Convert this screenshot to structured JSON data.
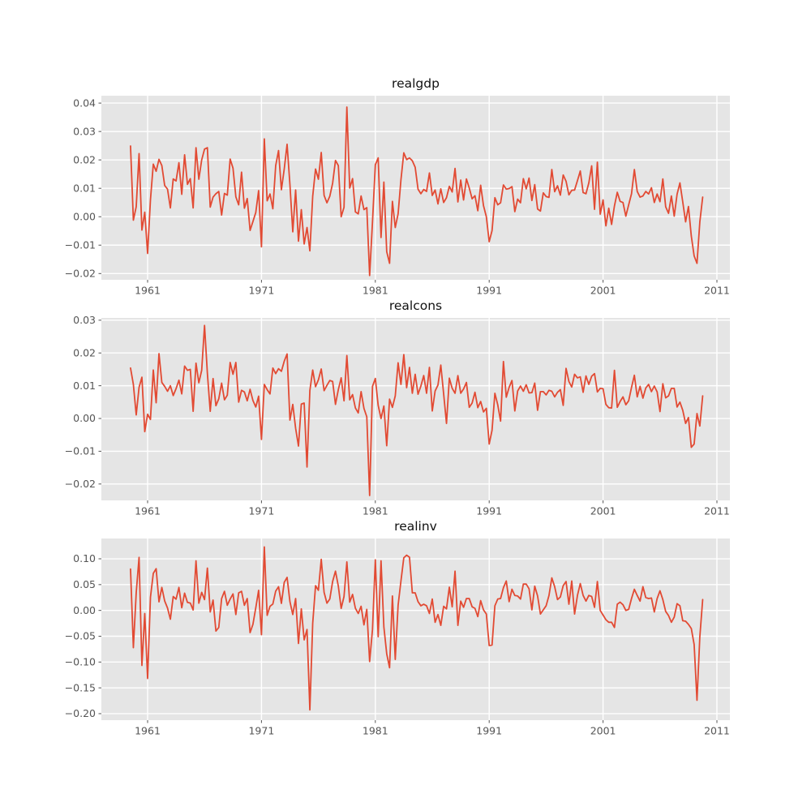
{
  "figure": {
    "background": "#ffffff",
    "plot_background": "#e5e5e5",
    "grid_color": "#ffffff",
    "line_color": "#e24a33",
    "tick_color": "#555555",
    "title_color": "#111111"
  },
  "chart_data": [
    {
      "type": "line",
      "title": "realgdp",
      "xlabel": "",
      "ylabel": "",
      "grid": true,
      "legend": "none",
      "x_start": 1959.5,
      "x_step": 0.25,
      "xlim": [
        1956.94,
        2012.14
      ],
      "ylim": [
        -0.0222,
        0.0426
      ],
      "xticks": [
        1961,
        1971,
        1981,
        1991,
        2001,
        2011
      ],
      "yticks": [
        0.04,
        0.03,
        0.02,
        0.01,
        0.0,
        -0.01,
        -0.02
      ],
      "values": [
        0.0249,
        -0.0012,
        0.0035,
        0.0222,
        -0.0047,
        0.0016,
        -0.0129,
        0.0059,
        0.0185,
        0.016,
        0.0202,
        0.018,
        0.011,
        0.0097,
        0.0031,
        0.0133,
        0.0126,
        0.019,
        0.0079,
        0.0218,
        0.0114,
        0.0134,
        0.0031,
        0.0243,
        0.0132,
        0.02,
        0.0238,
        0.0243,
        0.0034,
        0.0069,
        0.0081,
        0.0089,
        0.0006,
        0.0082,
        0.0076,
        0.0203,
        0.0171,
        0.007,
        0.0042,
        0.0157,
        0.003,
        0.0064,
        -0.0048,
        -0.0017,
        0.0015,
        0.0092,
        -0.0106,
        0.0274,
        0.0056,
        0.008,
        0.0028,
        0.018,
        0.0233,
        0.0095,
        0.0168,
        0.0255,
        0.0113,
        -0.0053,
        0.0094,
        -0.0086,
        0.0025,
        -0.0096,
        -0.0038,
        -0.012,
        0.0072,
        0.0168,
        0.0132,
        0.0226,
        0.0075,
        0.0049,
        0.0072,
        0.0118,
        0.0198,
        0.018,
        0.0,
        0.0033,
        0.0386,
        0.0101,
        0.0134,
        0.0017,
        0.001,
        0.0073,
        0.0025,
        0.0032,
        -0.0207,
        -0.0018,
        0.0183,
        0.0207,
        -0.0073,
        0.0122,
        -0.0123,
        -0.0164,
        0.0054,
        -0.0038,
        0.001,
        0.013,
        0.0225,
        0.0201,
        0.0207,
        0.0197,
        0.0174,
        0.0097,
        0.0081,
        0.0096,
        0.0089,
        0.0154,
        0.0075,
        0.0094,
        0.0045,
        0.0098,
        0.005,
        0.0067,
        0.0107,
        0.0087,
        0.017,
        0.0052,
        0.0129,
        0.0059,
        0.0133,
        0.0101,
        0.0063,
        0.0074,
        0.0021,
        0.0111,
        0.0039,
        0.0,
        -0.0088,
        -0.0049,
        0.0067,
        0.0042,
        0.0049,
        0.0112,
        0.0097,
        0.0099,
        0.0106,
        0.0018,
        0.0062,
        0.0049,
        0.0134,
        0.0098,
        0.0136,
        0.0057,
        0.0113,
        0.0027,
        0.002,
        0.0084,
        0.0071,
        0.0068,
        0.0166,
        0.0088,
        0.0109,
        0.0076,
        0.0147,
        0.0125,
        0.0077,
        0.0093,
        0.0094,
        0.0127,
        0.0161,
        0.0085,
        0.0081,
        0.0119,
        0.0179,
        0.0026,
        0.0192,
        0.0009,
        0.0059,
        -0.0032,
        0.003,
        -0.0027,
        0.0038,
        0.0086,
        0.0054,
        0.005,
        0.0002,
        0.0042,
        0.0081,
        0.0166,
        0.0089,
        0.0069,
        0.0073,
        0.0089,
        0.008,
        0.0102,
        0.005,
        0.008,
        0.0053,
        0.0133,
        0.0035,
        0.0012,
        0.0073,
        0.0002,
        0.0079,
        0.0119,
        0.0052,
        -0.0018,
        0.0036,
        -0.0068,
        -0.0138,
        -0.0164,
        -0.0018,
        0.0069
      ]
    },
    {
      "type": "line",
      "title": "realcons",
      "xlabel": "",
      "ylabel": "",
      "grid": true,
      "legend": "none",
      "x_start": 1959.5,
      "x_step": 0.25,
      "xlim": [
        1956.94,
        2012.14
      ],
      "ylim": [
        -0.025,
        0.0307
      ],
      "xticks": [
        1961,
        1971,
        1981,
        1991,
        2001,
        2011
      ],
      "yticks": [
        0.03,
        0.02,
        0.01,
        0.0,
        -0.01,
        -0.02
      ],
      "values": [
        0.0154,
        0.0104,
        0.0011,
        0.0095,
        0.0126,
        -0.004,
        0.0013,
        -0.0003,
        0.0148,
        0.0048,
        0.0198,
        0.011,
        0.0098,
        0.0083,
        0.01,
        0.007,
        0.0091,
        0.0117,
        0.0075,
        0.016,
        0.0147,
        0.015,
        0.0022,
        0.0169,
        0.0109,
        0.0147,
        0.0284,
        0.0138,
        0.0022,
        0.0122,
        0.0039,
        0.006,
        0.0108,
        0.0057,
        0.0071,
        0.0171,
        0.0135,
        0.0171,
        0.005,
        0.0086,
        0.0081,
        0.0054,
        0.0089,
        0.0055,
        0.0035,
        0.0068,
        -0.0064,
        0.0104,
        0.0088,
        0.0075,
        0.0154,
        0.0137,
        0.0152,
        0.0144,
        0.0175,
        0.0197,
        -0.0005,
        0.0043,
        -0.003,
        -0.0084,
        0.0044,
        0.0047,
        -0.0148,
        0.0085,
        0.0148,
        0.0097,
        0.0118,
        0.0151,
        0.0085,
        0.0101,
        0.0116,
        0.0113,
        0.0043,
        0.0088,
        0.0124,
        0.0054,
        0.0192,
        0.0057,
        0.0073,
        0.0032,
        0.0017,
        0.0082,
        0.0031,
        0.0005,
        -0.0235,
        0.0098,
        0.0122,
        0.004,
        0.0,
        0.0038,
        -0.0083,
        0.0059,
        0.0034,
        0.0069,
        0.017,
        0.0104,
        0.0195,
        0.0094,
        0.0156,
        0.0077,
        0.0135,
        0.0074,
        0.0099,
        0.0131,
        0.0077,
        0.0156,
        0.0023,
        0.0084,
        0.0102,
        0.0163,
        0.0075,
        -0.0015,
        0.0123,
        0.0092,
        0.0077,
        0.0131,
        0.0077,
        0.009,
        0.011,
        0.0034,
        0.0047,
        0.008,
        0.0033,
        0.0052,
        0.002,
        0.0031,
        -0.0078,
        -0.0036,
        0.0077,
        0.0042,
        -0.0008,
        0.0174,
        0.0065,
        0.0095,
        0.0116,
        0.0023,
        0.0084,
        0.0099,
        0.0083,
        0.0103,
        0.0078,
        0.0079,
        0.0108,
        0.0025,
        0.0082,
        0.0082,
        0.0072,
        0.0086,
        0.0083,
        0.0066,
        0.008,
        0.0088,
        0.004,
        0.0153,
        0.0113,
        0.0096,
        0.0135,
        0.0124,
        0.0127,
        0.008,
        0.013,
        0.0104,
        0.0129,
        0.0137,
        0.0081,
        0.0092,
        0.0091,
        0.0043,
        0.0033,
        0.0032,
        0.0147,
        0.0034,
        0.0052,
        0.0066,
        0.0042,
        0.0054,
        0.0095,
        0.0132,
        0.0066,
        0.0098,
        0.0062,
        0.0093,
        0.0104,
        0.0082,
        0.0099,
        0.0081,
        0.0021,
        0.0106,
        0.0063,
        0.0069,
        0.0092,
        0.0092,
        0.0035,
        0.005,
        0.0025,
        -0.0015,
        0.0003,
        -0.0088,
        -0.0078,
        0.0015,
        -0.0023,
        0.0069
      ]
    },
    {
      "type": "line",
      "title": "realinv",
      "xlabel": "",
      "ylabel": "",
      "grid": true,
      "legend": "none",
      "x_start": 1959.5,
      "x_step": 0.25,
      "xlim": [
        1956.94,
        2012.14
      ],
      "ylim": [
        -0.2126,
        0.1393
      ],
      "xticks": [
        1961,
        1971,
        1981,
        1991,
        2001,
        2011
      ],
      "yticks": [
        0.1,
        0.05,
        0.0,
        -0.05,
        -0.1,
        -0.15,
        -0.2
      ],
      "values": [
        0.0802,
        -0.0721,
        0.0344,
        0.1027,
        -0.1066,
        -0.006,
        -0.1318,
        0.0253,
        0.0718,
        0.0808,
        0.0166,
        0.0445,
        0.0183,
        0.0046,
        -0.017,
        0.0269,
        0.0218,
        0.0445,
        0.0052,
        0.0335,
        0.0155,
        0.0143,
        0.0009,
        0.096,
        0.014,
        0.035,
        0.021,
        0.082,
        -0.003,
        0.02,
        -0.04,
        -0.033,
        0.023,
        0.037,
        0.01,
        0.022,
        0.032,
        -0.008,
        0.034,
        0.037,
        0.01,
        0.023,
        -0.043,
        -0.027,
        0.005,
        0.039,
        -0.047,
        0.1229,
        -0.0095,
        0.008,
        0.0124,
        0.0374,
        0.0459,
        0.0137,
        0.0544,
        0.064,
        0.017,
        -0.008,
        0.023,
        -0.064,
        0.003,
        -0.057,
        -0.037,
        -0.1927,
        -0.025,
        0.048,
        0.039,
        0.099,
        0.035,
        0.014,
        0.022,
        0.056,
        0.076,
        0.047,
        0.004,
        0.027,
        0.094,
        0.016,
        0.031,
        0.004,
        -0.006,
        0.008,
        -0.028,
        0.002,
        -0.099,
        -0.037,
        0.098,
        -0.051,
        0.096,
        -0.032,
        -0.084,
        -0.111,
        0.028,
        -0.095,
        0.01,
        0.057,
        0.102,
        0.107,
        0.103,
        0.034,
        0.034,
        0.017,
        0.009,
        0.012,
        0.009,
        -0.006,
        0.022,
        -0.023,
        -0.008,
        -0.029,
        0.008,
        0.003,
        0.045,
        0.007,
        0.076,
        -0.029,
        0.018,
        0.006,
        0.023,
        0.023,
        0.007,
        0.004,
        -0.012,
        0.019,
        0.001,
        -0.007,
        -0.068,
        -0.067,
        0.009,
        0.022,
        0.023,
        0.044,
        0.057,
        0.017,
        0.041,
        0.029,
        0.028,
        0.022,
        0.051,
        0.051,
        0.042,
        0.001,
        0.047,
        0.028,
        -0.007,
        0.001,
        0.009,
        0.029,
        0.063,
        0.046,
        0.021,
        0.026,
        0.048,
        0.056,
        0.012,
        0.057,
        -0.007,
        0.029,
        0.052,
        0.029,
        0.018,
        0.029,
        0.027,
        0.006,
        0.056,
        0.0,
        -0.009,
        -0.018,
        -0.023,
        -0.023,
        -0.033,
        0.012,
        0.016,
        0.011,
        0.0,
        0.002,
        0.023,
        0.041,
        0.029,
        0.018,
        0.046,
        0.025,
        0.023,
        0.024,
        -0.003,
        0.023,
        0.038,
        0.021,
        -0.002,
        -0.01,
        -0.023,
        -0.013,
        0.013,
        0.009,
        -0.02,
        -0.021,
        -0.027,
        -0.035,
        -0.066,
        -0.174,
        -0.051,
        0.021
      ]
    }
  ]
}
